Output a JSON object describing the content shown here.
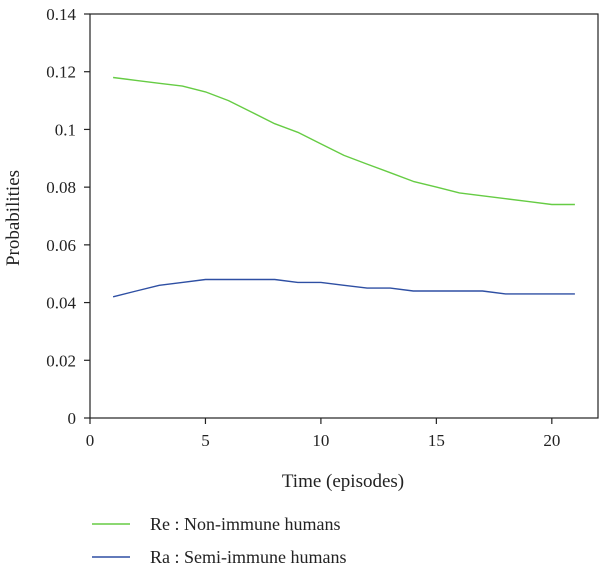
{
  "chart_data": {
    "type": "line",
    "title": "",
    "xlabel": "Time (episodes)",
    "ylabel": "Probabilities",
    "xlim": [
      0,
      22
    ],
    "ylim": [
      0,
      0.14
    ],
    "x_ticks": [
      "0",
      "5",
      "10",
      "15",
      "20"
    ],
    "y_ticks": [
      "0",
      "0.02",
      "0.04",
      "0.06",
      "0.08",
      "0.1",
      "0.12",
      "0.14"
    ],
    "grid": false,
    "legend_position": "bottom",
    "x": [
      1,
      2,
      3,
      4,
      5,
      6,
      7,
      8,
      9,
      10,
      11,
      12,
      13,
      14,
      15,
      16,
      17,
      18,
      19,
      20,
      21
    ],
    "series": [
      {
        "name": "Re : Non-immune humans",
        "color": "#66cc44",
        "values": [
          0.118,
          0.117,
          0.116,
          0.115,
          0.113,
          0.11,
          0.106,
          0.102,
          0.099,
          0.095,
          0.091,
          0.088,
          0.085,
          0.082,
          0.08,
          0.078,
          0.077,
          0.076,
          0.075,
          0.074,
          0.074
        ]
      },
      {
        "name": "Ra : Semi-immune humans",
        "color": "#2e4fa3",
        "values": [
          0.042,
          0.044,
          0.046,
          0.047,
          0.048,
          0.048,
          0.048,
          0.048,
          0.047,
          0.047,
          0.046,
          0.045,
          0.045,
          0.044,
          0.044,
          0.044,
          0.044,
          0.043,
          0.043,
          0.043,
          0.043
        ]
      }
    ]
  }
}
